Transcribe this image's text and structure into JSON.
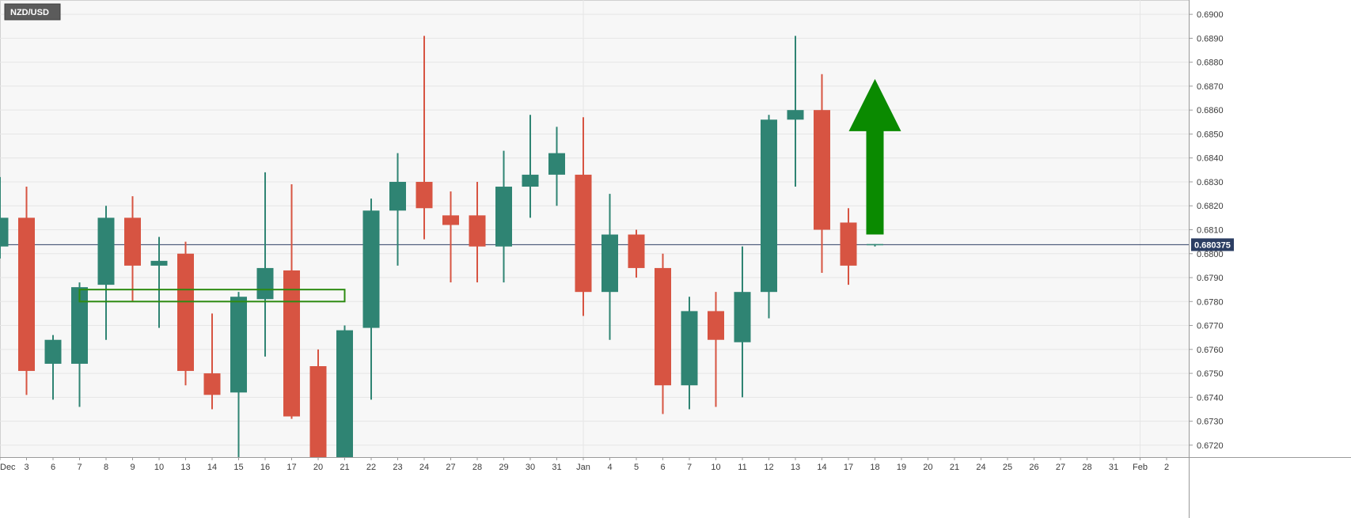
{
  "chart_data": {
    "type": "candlestick",
    "symbol": "NZD/USD",
    "last_price": "0.680375",
    "last_price_value": 0.680375,
    "ylim": [
      0.6715,
      0.6905
    ],
    "y_ticks": [
      "0.6720",
      "0.6730",
      "0.6740",
      "0.6750",
      "0.6760",
      "0.6770",
      "0.6780",
      "0.6790",
      "0.6800",
      "0.6810",
      "0.6820",
      "0.6830",
      "0.6840",
      "0.6850",
      "0.6860",
      "0.6870",
      "0.6880",
      "0.6890",
      "0.6900"
    ],
    "x_ticks": [
      "Dec",
      "3",
      "6",
      "7",
      "8",
      "9",
      "10",
      "13",
      "14",
      "15",
      "16",
      "17",
      "20",
      "21",
      "22",
      "23",
      "24",
      "27",
      "28",
      "29",
      "30",
      "31",
      "Jan",
      "4",
      "5",
      "6",
      "7",
      "10",
      "11",
      "12",
      "13",
      "14",
      "17",
      "18",
      "19",
      "20",
      "21",
      "24",
      "25",
      "26",
      "27",
      "28",
      "31",
      "Feb",
      "2"
    ],
    "grid": true,
    "colors": {
      "up": "#2f8473",
      "down": "#d75442",
      "background": "#f7f7f7",
      "grid": "#e6e6e6",
      "annotation_box": "#000000",
      "support_box": "#2e8b12",
      "arrow": "#0a8a00",
      "last_label_bg": "#2c3e63"
    },
    "candles": [
      {
        "open": 0.6803,
        "high": 0.6832,
        "low": 0.6798,
        "close": 0.6815
      },
      {
        "open": 0.6815,
        "high": 0.6828,
        "low": 0.6741,
        "close": 0.6751
      },
      {
        "open": 0.6754,
        "high": 0.6766,
        "low": 0.6739,
        "close": 0.6764
      },
      {
        "open": 0.6754,
        "high": 0.6788,
        "low": 0.6736,
        "close": 0.6786
      },
      {
        "open": 0.6787,
        "high": 0.682,
        "low": 0.6764,
        "close": 0.6815
      },
      {
        "open": 0.6815,
        "high": 0.6824,
        "low": 0.678,
        "close": 0.6795
      },
      {
        "open": 0.6795,
        "high": 0.6807,
        "low": 0.6769,
        "close": 0.6797
      },
      {
        "open": 0.68,
        "high": 0.6805,
        "low": 0.6745,
        "close": 0.6751
      },
      {
        "open": 0.675,
        "high": 0.6775,
        "low": 0.6735,
        "close": 0.6741
      },
      {
        "open": 0.6742,
        "high": 0.6784,
        "low": 0.6715,
        "close": 0.6782
      },
      {
        "open": 0.6781,
        "high": 0.6834,
        "low": 0.6757,
        "close": 0.6794
      },
      {
        "open": 0.6793,
        "high": 0.6829,
        "low": 0.6731,
        "close": 0.6732
      },
      {
        "open": 0.6753,
        "high": 0.676,
        "low": 0.6715,
        "close": 0.6715
      },
      {
        "open": 0.6715,
        "high": 0.677,
        "low": 0.6715,
        "close": 0.6768
      },
      {
        "open": 0.6769,
        "high": 0.6823,
        "low": 0.6739,
        "close": 0.6818
      },
      {
        "open": 0.6818,
        "high": 0.6842,
        "low": 0.6795,
        "close": 0.683
      },
      {
        "open": 0.683,
        "high": 0.6891,
        "low": 0.6806,
        "close": 0.6819
      },
      {
        "open": 0.6816,
        "high": 0.6826,
        "low": 0.6788,
        "close": 0.6812
      },
      {
        "open": 0.6816,
        "high": 0.683,
        "low": 0.6788,
        "close": 0.6803
      },
      {
        "open": 0.6803,
        "high": 0.6843,
        "low": 0.6788,
        "close": 0.6828
      },
      {
        "open": 0.6828,
        "high": 0.6858,
        "low": 0.6815,
        "close": 0.6833
      },
      {
        "open": 0.6833,
        "high": 0.6853,
        "low": 0.682,
        "close": 0.6842
      },
      {
        "open": 0.6833,
        "high": 0.6857,
        "low": 0.6774,
        "close": 0.6784
      },
      {
        "open": 0.6784,
        "high": 0.6825,
        "low": 0.6764,
        "close": 0.6808
      },
      {
        "open": 0.6808,
        "high": 0.681,
        "low": 0.679,
        "close": 0.6794
      },
      {
        "open": 0.6794,
        "high": 0.68,
        "low": 0.6733,
        "close": 0.6745
      },
      {
        "open": 0.6745,
        "high": 0.6782,
        "low": 0.6735,
        "close": 0.6776
      },
      {
        "open": 0.6776,
        "high": 0.6784,
        "low": 0.6736,
        "close": 0.6764
      },
      {
        "open": 0.6763,
        "high": 0.6803,
        "low": 0.674,
        "close": 0.6784
      },
      {
        "open": 0.6784,
        "high": 0.6858,
        "low": 0.6773,
        "close": 0.6856
      },
      {
        "open": 0.6856,
        "high": 0.6891,
        "low": 0.6828,
        "close": 0.686
      },
      {
        "open": 0.686,
        "high": 0.6875,
        "low": 0.6792,
        "close": 0.681
      },
      {
        "open": 0.6813,
        "high": 0.6819,
        "low": 0.6787,
        "close": 0.6795
      },
      {
        "open": 0.6804,
        "high": 0.6804,
        "low": 0.6803,
        "close": 0.6804
      }
    ],
    "annotations": {
      "window_box": {
        "x_start": "5",
        "x_end": "20",
        "y_low": 0.6722,
        "y_high": 0.6895
      },
      "support_zone": {
        "x_start": "7",
        "x_end": "21",
        "y_low": 0.678,
        "y_high": 0.6785
      },
      "up_arrow": {
        "x": "18",
        "y_from": 0.6808,
        "y_to": 0.6873
      }
    }
  }
}
